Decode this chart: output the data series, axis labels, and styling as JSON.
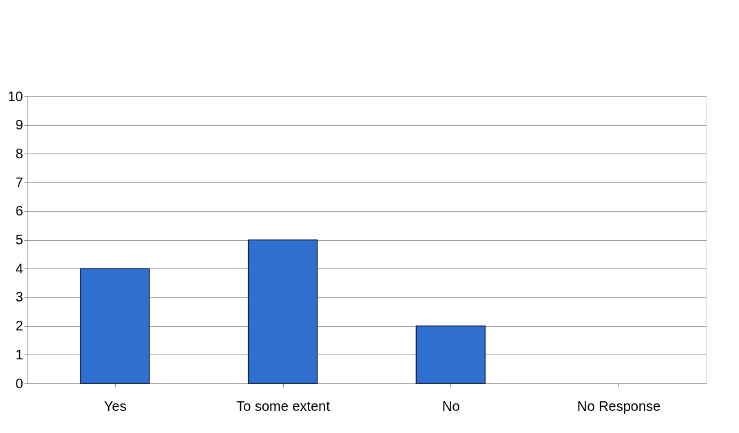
{
  "chart_data": {
    "type": "bar",
    "categories": [
      "Yes",
      "To some extent",
      "No",
      "No Response"
    ],
    "values": [
      4,
      5,
      2,
      0
    ],
    "color": "#2f6fd0",
    "ylim": [
      0,
      10
    ],
    "yticks": [
      0,
      1,
      2,
      3,
      4,
      5,
      6,
      7,
      8,
      9,
      10
    ],
    "grid": "y"
  }
}
